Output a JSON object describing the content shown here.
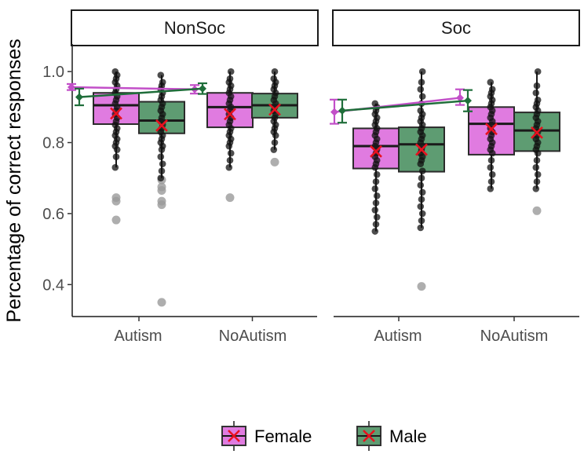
{
  "chart_data": {
    "type": "box",
    "ylabel": "Percentage of correct responses",
    "xlabel": "",
    "ylim": [
      0.31,
      1.06
    ],
    "y_ticks": [
      "0.4",
      "0.6",
      "0.8",
      "1.0"
    ],
    "categories": [
      "Autism",
      "NoAutism"
    ],
    "legend": {
      "position": "bottom",
      "items": [
        {
          "name": "Female",
          "fill": "#e07be0"
        },
        {
          "name": "Male",
          "fill": "#5e9c72"
        }
      ]
    },
    "colors": {
      "female_fill": "#e07be0",
      "male_fill": "#5e9c72",
      "female_line": "#c24fc8",
      "male_line": "#1f6e3a",
      "mean_marker": "#e8111f",
      "point": "#111111",
      "outlier": "#9a9a9a"
    },
    "facets": [
      {
        "label": "NonSoc",
        "boxes": [
          {
            "group": "Autism",
            "sex": "Female",
            "q1": 0.852,
            "median": 0.905,
            "q3": 0.94,
            "whisker_low": 0.73,
            "whisker_high": 1.0,
            "mean": 0.882,
            "outliers": [
              0.645,
              0.635,
              0.582
            ],
            "points": [
              0.73,
              0.76,
              0.78,
              0.79,
              0.8,
              0.81,
              0.82,
              0.83,
              0.84,
              0.85,
              0.86,
              0.87,
              0.88,
              0.89,
              0.9,
              0.91,
              0.92,
              0.93,
              0.94,
              0.95,
              0.96,
              0.97,
              0.98,
              0.99,
              1.0
            ]
          },
          {
            "group": "Autism",
            "sex": "Male",
            "q1": 0.826,
            "median": 0.862,
            "q3": 0.915,
            "whisker_low": 0.7,
            "whisker_high": 0.99,
            "mean": 0.848,
            "outliers": [
              0.695,
              0.675,
              0.665,
              0.635,
              0.625,
              0.35
            ],
            "points": [
              0.7,
              0.72,
              0.74,
              0.76,
              0.78,
              0.79,
              0.8,
              0.81,
              0.82,
              0.83,
              0.84,
              0.85,
              0.86,
              0.87,
              0.88,
              0.89,
              0.9,
              0.91,
              0.92,
              0.93,
              0.94,
              0.95,
              0.96,
              0.97,
              0.99
            ]
          },
          {
            "group": "NoAutism",
            "sex": "Female",
            "q1": 0.843,
            "median": 0.9,
            "q3": 0.94,
            "whisker_low": 0.73,
            "whisker_high": 1.0,
            "mean": 0.88,
            "outliers": [
              0.645
            ],
            "points": [
              0.73,
              0.75,
              0.77,
              0.79,
              0.8,
              0.81,
              0.82,
              0.83,
              0.84,
              0.85,
              0.86,
              0.87,
              0.88,
              0.89,
              0.9,
              0.91,
              0.92,
              0.93,
              0.94,
              0.95,
              0.96,
              0.97,
              0.98,
              1.0
            ]
          },
          {
            "group": "NoAutism",
            "sex": "Male",
            "q1": 0.87,
            "median": 0.905,
            "q3": 0.938,
            "whisker_low": 0.78,
            "whisker_high": 1.0,
            "mean": 0.893,
            "outliers": [
              0.745
            ],
            "points": [
              0.78,
              0.8,
              0.82,
              0.83,
              0.84,
              0.85,
              0.86,
              0.87,
              0.88,
              0.89,
              0.9,
              0.91,
              0.92,
              0.93,
              0.94,
              0.95,
              0.96,
              0.97,
              0.98,
              1.0
            ]
          }
        ],
        "mean_lines": [
          {
            "sex": "Female",
            "start": 0.956,
            "start_ci": [
              0.948,
              0.965
            ],
            "end": 0.95,
            "end_ci": [
              0.938,
              0.962
            ]
          },
          {
            "sex": "Male",
            "start": 0.928,
            "start_ci": [
              0.905,
              0.952
            ],
            "end": 0.952,
            "end_ci": [
              0.937,
              0.967
            ]
          }
        ]
      },
      {
        "label": "Soc",
        "boxes": [
          {
            "group": "Autism",
            "sex": "Female",
            "q1": 0.727,
            "median": 0.79,
            "q3": 0.84,
            "whisker_low": 0.55,
            "whisker_high": 0.91,
            "mean": 0.775,
            "outliers": [],
            "points": [
              0.55,
              0.57,
              0.59,
              0.61,
              0.63,
              0.65,
              0.67,
              0.69,
              0.71,
              0.73,
              0.74,
              0.75,
              0.76,
              0.77,
              0.78,
              0.79,
              0.8,
              0.81,
              0.82,
              0.83,
              0.84,
              0.85,
              0.86,
              0.87,
              0.88,
              0.89,
              0.9,
              0.91
            ]
          },
          {
            "group": "Autism",
            "sex": "Male",
            "q1": 0.718,
            "median": 0.795,
            "q3": 0.843,
            "whisker_low": 0.56,
            "whisker_high": 1.0,
            "mean": 0.78,
            "outliers": [
              0.395
            ],
            "points": [
              0.56,
              0.58,
              0.6,
              0.62,
              0.64,
              0.66,
              0.68,
              0.7,
              0.72,
              0.74,
              0.75,
              0.76,
              0.77,
              0.78,
              0.79,
              0.8,
              0.81,
              0.82,
              0.83,
              0.84,
              0.85,
              0.86,
              0.87,
              0.88,
              0.89,
              0.91,
              0.93,
              0.95,
              0.97,
              1.0
            ]
          },
          {
            "group": "NoAutism",
            "sex": "Female",
            "q1": 0.766,
            "median": 0.853,
            "q3": 0.9,
            "whisker_low": 0.67,
            "whisker_high": 0.97,
            "mean": 0.838,
            "outliers": [],
            "points": [
              0.67,
              0.69,
              0.71,
              0.73,
              0.75,
              0.77,
              0.78,
              0.79,
              0.8,
              0.81,
              0.82,
              0.83,
              0.84,
              0.85,
              0.86,
              0.87,
              0.88,
              0.89,
              0.9,
              0.91,
              0.92,
              0.93,
              0.94,
              0.95,
              0.97
            ]
          },
          {
            "group": "NoAutism",
            "sex": "Male",
            "q1": 0.776,
            "median": 0.834,
            "q3": 0.885,
            "whisker_low": 0.67,
            "whisker_high": 1.0,
            "mean": 0.828,
            "outliers": [
              0.608
            ],
            "points": [
              0.67,
              0.69,
              0.71,
              0.73,
              0.75,
              0.77,
              0.78,
              0.79,
              0.8,
              0.81,
              0.82,
              0.83,
              0.84,
              0.85,
              0.86,
              0.87,
              0.88,
              0.89,
              0.9,
              0.91,
              0.92,
              0.94,
              0.96,
              1.0
            ]
          }
        ],
        "mean_lines": [
          {
            "sex": "Female",
            "start": 0.886,
            "start_ci": [
              0.853,
              0.921
            ],
            "end": 0.926,
            "end_ci": [
              0.906,
              0.95
            ]
          },
          {
            "sex": "Male",
            "start": 0.89,
            "start_ci": [
              0.856,
              0.921
            ],
            "end": 0.918,
            "end_ci": [
              0.888,
              0.948
            ]
          }
        ]
      }
    ]
  }
}
